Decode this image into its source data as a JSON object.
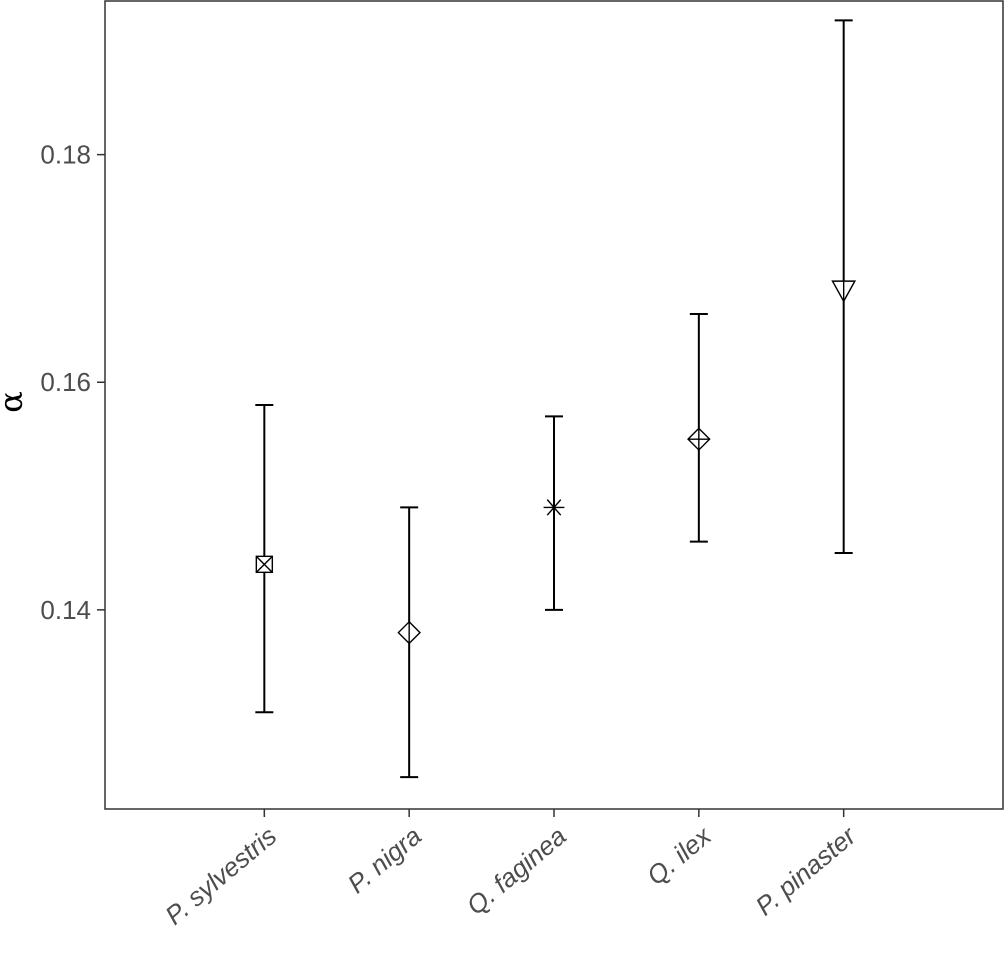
{
  "chart_data": {
    "type": "scatter",
    "title": "",
    "xlabel": "",
    "ylabel": "α",
    "ylim": [
      0.1225,
      0.1935
    ],
    "yticks": [
      0.14,
      0.16,
      0.18
    ],
    "ytick_labels": [
      "0.14",
      "0.16",
      "0.18"
    ],
    "grid": false,
    "legend": "none",
    "categories": [
      "P. sylvestris",
      "P. nigra",
      "Q. faginea",
      "Q. ilex",
      "P. pinaster"
    ],
    "points": [
      {
        "category": "P. sylvestris",
        "y": 0.144,
        "ymin": 0.131,
        "ymax": 0.158,
        "marker": "square-cross"
      },
      {
        "category": "P. nigra",
        "y": 0.138,
        "ymin": 0.1253,
        "ymax": 0.149,
        "marker": "diamond"
      },
      {
        "category": "Q. faginea",
        "y": 0.149,
        "ymin": 0.14,
        "ymax": 0.157,
        "marker": "asterisk"
      },
      {
        "category": "Q. ilex",
        "y": 0.155,
        "ymin": 0.146,
        "ymax": 0.166,
        "marker": "diamond-plus"
      },
      {
        "category": "P. pinaster",
        "y": 0.168,
        "ymin": 0.145,
        "ymax": 0.1918,
        "marker": "triangle-down"
      }
    ]
  }
}
